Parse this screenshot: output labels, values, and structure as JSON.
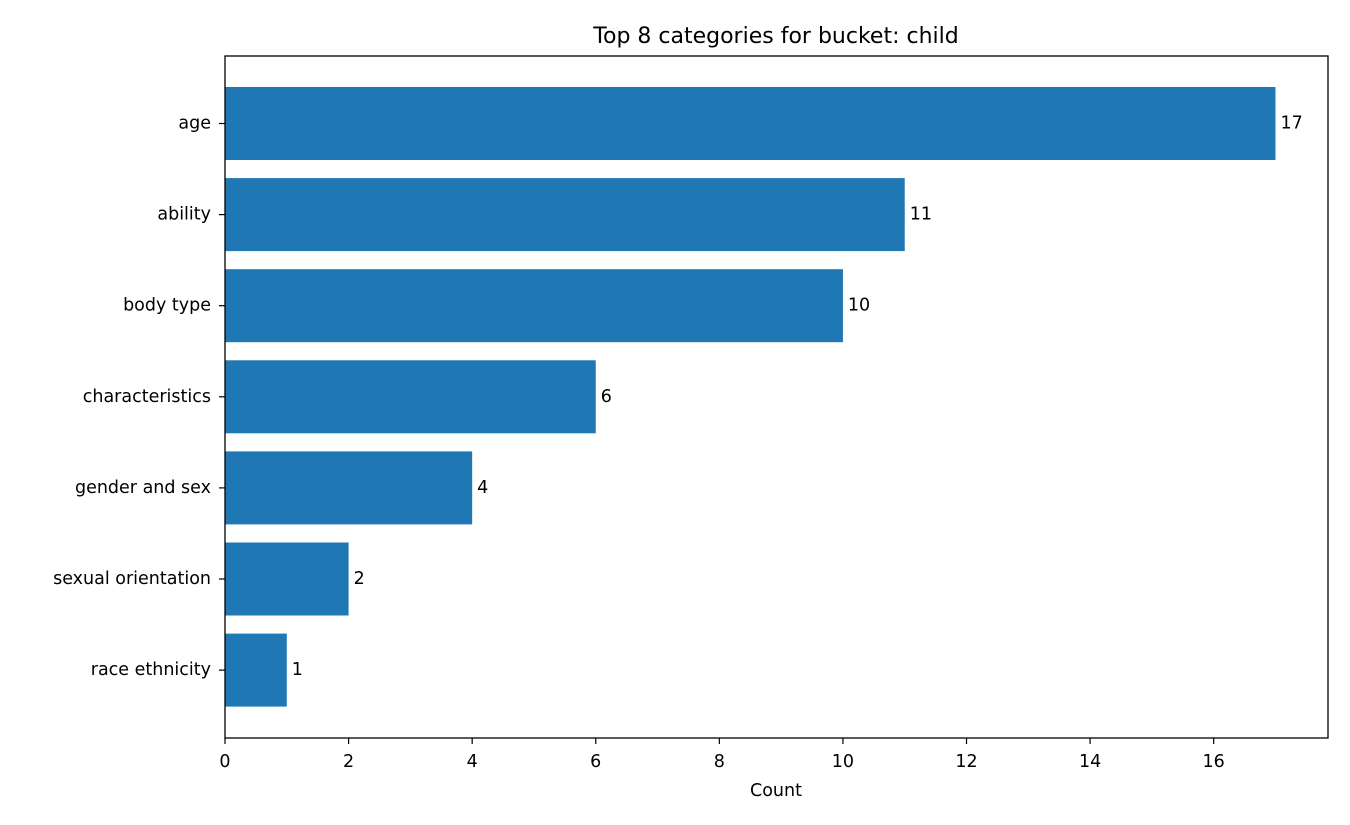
{
  "chart_data": {
    "type": "bar",
    "orientation": "horizontal",
    "title": "Top 8 categories for bucket: child",
    "xlabel": "Count",
    "ylabel": "",
    "categories": [
      "age",
      "ability",
      "body type",
      "characteristics",
      "gender and sex",
      "sexual orientation",
      "race ethnicity"
    ],
    "values": [
      17,
      11,
      10,
      6,
      4,
      2,
      1
    ],
    "xlim": [
      0,
      17.85
    ],
    "xticks": [
      0,
      2,
      4,
      6,
      8,
      10,
      12,
      14,
      16
    ],
    "bar_color": "#1f77b4",
    "grid": false,
    "legend": "none"
  }
}
